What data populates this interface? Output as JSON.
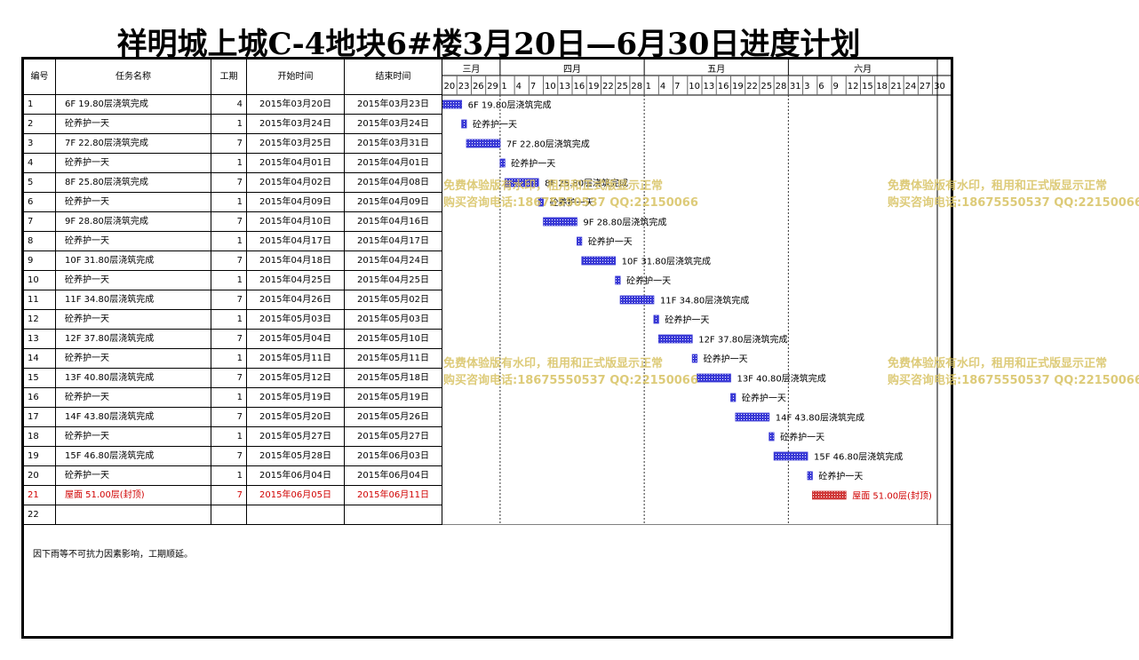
{
  "title": "祥明城上城C-4地块6#楼3月20日—6月30日进度计划",
  "headers": {
    "id": "编号",
    "name": "任务名称",
    "duration": "工期",
    "start": "开始时间",
    "end": "结束时间"
  },
  "months": [
    "三月",
    "四月",
    "五月",
    "六月"
  ],
  "day_ticks": [
    "20",
    "23",
    "26",
    "29",
    "1",
    "4",
    "7",
    "10",
    "13",
    "16",
    "19",
    "22",
    "25",
    "28",
    "1",
    "4",
    "7",
    "10",
    "13",
    "16",
    "19",
    "22",
    "25",
    "28",
    "31",
    "3",
    "6",
    "9",
    "12",
    "15",
    "18",
    "21",
    "24",
    "27",
    "30"
  ],
  "tasks": [
    {
      "id": "1",
      "name": "6F 19.80层浇筑完成",
      "duration": "4",
      "start": "2015年03月20日",
      "end": "2015年03月23日",
      "critical": false
    },
    {
      "id": "2",
      "name": "砼养护一天",
      "duration": "1",
      "start": "2015年03月24日",
      "end": "2015年03月24日",
      "critical": false
    },
    {
      "id": "3",
      "name": "7F 22.80层浇筑完成",
      "duration": "7",
      "start": "2015年03月25日",
      "end": "2015年03月31日",
      "critical": false
    },
    {
      "id": "4",
      "name": "砼养护一天",
      "duration": "1",
      "start": "2015年04月01日",
      "end": "2015年04月01日",
      "critical": false
    },
    {
      "id": "5",
      "name": "8F 25.80层浇筑完成",
      "duration": "7",
      "start": "2015年04月02日",
      "end": "2015年04月08日",
      "critical": false
    },
    {
      "id": "6",
      "name": "砼养护一天",
      "duration": "1",
      "start": "2015年04月09日",
      "end": "2015年04月09日",
      "critical": false
    },
    {
      "id": "7",
      "name": "9F 28.80层浇筑完成",
      "duration": "7",
      "start": "2015年04月10日",
      "end": "2015年04月16日",
      "critical": false
    },
    {
      "id": "8",
      "name": "砼养护一天",
      "duration": "1",
      "start": "2015年04月17日",
      "end": "2015年04月17日",
      "critical": false
    },
    {
      "id": "9",
      "name": "10F 31.80层浇筑完成",
      "duration": "7",
      "start": "2015年04月18日",
      "end": "2015年04月24日",
      "critical": false
    },
    {
      "id": "10",
      "name": "砼养护一天",
      "duration": "1",
      "start": "2015年04月25日",
      "end": "2015年04月25日",
      "critical": false
    },
    {
      "id": "11",
      "name": "11F 34.80层浇筑完成",
      "duration": "7",
      "start": "2015年04月26日",
      "end": "2015年05月02日",
      "critical": false
    },
    {
      "id": "12",
      "name": "砼养护一天",
      "duration": "1",
      "start": "2015年05月03日",
      "end": "2015年05月03日",
      "critical": false
    },
    {
      "id": "13",
      "name": "12F 37.80层浇筑完成",
      "duration": "7",
      "start": "2015年05月04日",
      "end": "2015年05月10日",
      "critical": false
    },
    {
      "id": "14",
      "name": "砼养护一天",
      "duration": "1",
      "start": "2015年05月11日",
      "end": "2015年05月11日",
      "critical": false
    },
    {
      "id": "15",
      "name": "13F 40.80层浇筑完成",
      "duration": "7",
      "start": "2015年05月12日",
      "end": "2015年05月18日",
      "critical": false
    },
    {
      "id": "16",
      "name": "砼养护一天",
      "duration": "1",
      "start": "2015年05月19日",
      "end": "2015年05月19日",
      "critical": false
    },
    {
      "id": "17",
      "name": "14F 43.80层浇筑完成",
      "duration": "7",
      "start": "2015年05月20日",
      "end": "2015年05月26日",
      "critical": false
    },
    {
      "id": "18",
      "name": "砼养护一天",
      "duration": "1",
      "start": "2015年05月27日",
      "end": "2015年05月27日",
      "critical": false
    },
    {
      "id": "19",
      "name": "15F 46.80层浇筑完成",
      "duration": "7",
      "start": "2015年05月28日",
      "end": "2015年06月03日",
      "critical": false
    },
    {
      "id": "20",
      "name": "砼养护一天",
      "duration": "1",
      "start": "2015年06月04日",
      "end": "2015年06月04日",
      "critical": false
    },
    {
      "id": "21",
      "name": "屋面 51.00层(封顶)",
      "duration": "7",
      "start": "2015年06月05日",
      "end": "2015年06月11日",
      "critical": true
    },
    {
      "id": "22",
      "name": "",
      "duration": "",
      "start": "",
      "end": "",
      "critical": false
    }
  ],
  "note": "因下雨等不可抗力因素影响，工期顺延。",
  "watermarks": [
    {
      "line1": "免费体验版有水印，租用和正式版显示正常",
      "line2": "购买咨询电话:18675550537 QQ:22150066"
    },
    {
      "line1": "免费体验版有水印，租用和正式版显示正常",
      "line2": "购买咨询电话:18675550537 QQ:22150066"
    },
    {
      "line1": "免费体验版有水印，租用和正式版显示正常",
      "line2": "购买咨询电话:18675550537 QQ:22150066"
    },
    {
      "line1": "免费体验版有水印，租用和正式版显示正常",
      "line2": "购买咨询电话:18675550537 QQ:22150066"
    }
  ],
  "colors": {
    "bar": "#3a3ad6",
    "bar_critical": "#d03a3a",
    "critical_text": "#d00000",
    "watermark": "#d8c262"
  },
  "chart_data": {
    "type": "gantt",
    "title": "祥明城上城C-4地块6#楼3月20日—6月30日进度计划",
    "x_range": [
      "2015-03-20",
      "2015-06-30"
    ],
    "bars": [
      {
        "label": "6F 19.80层浇筑完成",
        "start": "2015-03-20",
        "end": "2015-03-23"
      },
      {
        "label": "砼养护一天",
        "start": "2015-03-24",
        "end": "2015-03-24"
      },
      {
        "label": "7F 22.80层浇筑完成",
        "start": "2015-03-25",
        "end": "2015-03-31"
      },
      {
        "label": "砼养护一天",
        "start": "2015-04-01",
        "end": "2015-04-01"
      },
      {
        "label": "8F 25.80层浇筑完成",
        "start": "2015-04-02",
        "end": "2015-04-08"
      },
      {
        "label": "砼养护一天",
        "start": "2015-04-09",
        "end": "2015-04-09"
      },
      {
        "label": "9F 28.80层浇筑完成",
        "start": "2015-04-10",
        "end": "2015-04-16"
      },
      {
        "label": "砼养护一天",
        "start": "2015-04-17",
        "end": "2015-04-17"
      },
      {
        "label": "10F 31.80层浇筑完成",
        "start": "2015-04-18",
        "end": "2015-04-24"
      },
      {
        "label": "砼养护一天",
        "start": "2015-04-25",
        "end": "2015-04-25"
      },
      {
        "label": "11F 34.80层浇筑完成",
        "start": "2015-04-26",
        "end": "2015-05-02"
      },
      {
        "label": "砼养护一天",
        "start": "2015-05-03",
        "end": "2015-05-03"
      },
      {
        "label": "12F 37.80层浇筑完成",
        "start": "2015-05-04",
        "end": "2015-05-10"
      },
      {
        "label": "砼养护一天",
        "start": "2015-05-11",
        "end": "2015-05-11"
      },
      {
        "label": "13F 40.80层浇筑完成",
        "start": "2015-05-12",
        "end": "2015-05-18"
      },
      {
        "label": "砼养护一天",
        "start": "2015-05-19",
        "end": "2015-05-19"
      },
      {
        "label": "14F 43.80层浇筑完成",
        "start": "2015-05-20",
        "end": "2015-05-26"
      },
      {
        "label": "砼养护一天",
        "start": "2015-05-27",
        "end": "2015-05-27"
      },
      {
        "label": "15F 46.80层浇筑完成",
        "start": "2015-05-28",
        "end": "2015-06-03"
      },
      {
        "label": "砼养护一天",
        "start": "2015-06-04",
        "end": "2015-06-04"
      },
      {
        "label": "屋面 51.00层(封顶)",
        "start": "2015-06-05",
        "end": "2015-06-11",
        "critical": true
      }
    ],
    "grid": true
  }
}
